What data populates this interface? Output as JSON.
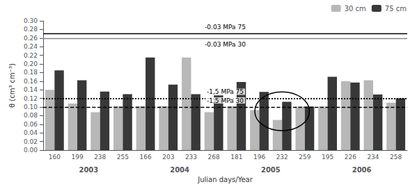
{
  "chart_data": {
    "type": "bar",
    "xlabel": "Julian days/Year",
    "ylabel": "θ (cm³ cm⁻³)",
    "categories": [
      "160",
      "199",
      "238",
      "255",
      "166",
      "203",
      "233",
      "268",
      "181",
      "196",
      "232",
      "259",
      "195",
      "226",
      "234",
      "258"
    ],
    "category_groups": [
      {
        "label": "2003",
        "from": "160",
        "to": "255"
      },
      {
        "label": "2004",
        "from": "166",
        "to": "268"
      },
      {
        "label": "2005",
        "from": "181",
        "to": "259"
      },
      {
        "label": "2006",
        "from": "195",
        "to": "258"
      }
    ],
    "series": [
      {
        "name": "30 cm",
        "color": "#b8b8b8",
        "values": [
          0.14,
          0.108,
          0.088,
          0.102,
          0.102,
          0.102,
          0.215,
          0.088,
          0.102,
          0.093,
          0.07,
          0.101,
          0.101,
          0.16,
          0.162,
          0.11
        ]
      },
      {
        "name": "75 cm",
        "color": "#383838",
        "values": [
          0.185,
          0.162,
          0.136,
          0.13,
          0.215,
          0.152,
          0.13,
          0.127,
          0.158,
          0.135,
          0.112,
          0.101,
          0.17,
          0.157,
          0.129,
          0.12
        ]
      }
    ],
    "ylim": [
      0.0,
      0.3
    ],
    "yticks": [
      {
        "value": 0.0,
        "label": "0.00"
      },
      {
        "value": 0.02,
        "label": "0.02"
      },
      {
        "value": 0.04,
        "label": "0.04"
      },
      {
        "value": 0.06,
        "label": "0.06"
      },
      {
        "value": 0.08,
        "label": "0.08"
      },
      {
        "value": 0.1,
        "label": "0.10"
      },
      {
        "value": 0.12,
        "label": "0.12"
      },
      {
        "value": 0.14,
        "label": "0.14"
      },
      {
        "value": 0.16,
        "label": "0.16"
      },
      {
        "value": 0.18,
        "label": "0.18"
      },
      {
        "value": 0.2,
        "label": "0.20"
      },
      {
        "value": 0.22,
        "label": "0.22"
      },
      {
        "value": 0.24,
        "label": "0.24"
      },
      {
        "value": 0.26,
        "label": "0.26"
      },
      {
        "value": 0.28,
        "label": "0.28"
      },
      {
        "value": 0.3,
        "label": "0.30"
      }
    ],
    "grid": false,
    "legend": "upper right",
    "reference_lines": [
      {
        "value": 0.274,
        "label": "-0.03 MPa 75",
        "color": "#000000",
        "line_style": "solid"
      },
      {
        "value": 0.262,
        "label": "-0.03 MPa 30",
        "color": "#888888",
        "line_style": "solid"
      },
      {
        "value": 0.121,
        "label": "-1,5 MPa 75",
        "color": "#000000",
        "line_style": "dotted"
      },
      {
        "value": 0.101,
        "label": "-1,5 MPa 30",
        "color": "#000000",
        "line_style": "dashed"
      }
    ],
    "annotations": [
      {
        "shape": "ellipse",
        "x": "232",
        "y": 0.09,
        "height": 0.09
      }
    ]
  }
}
